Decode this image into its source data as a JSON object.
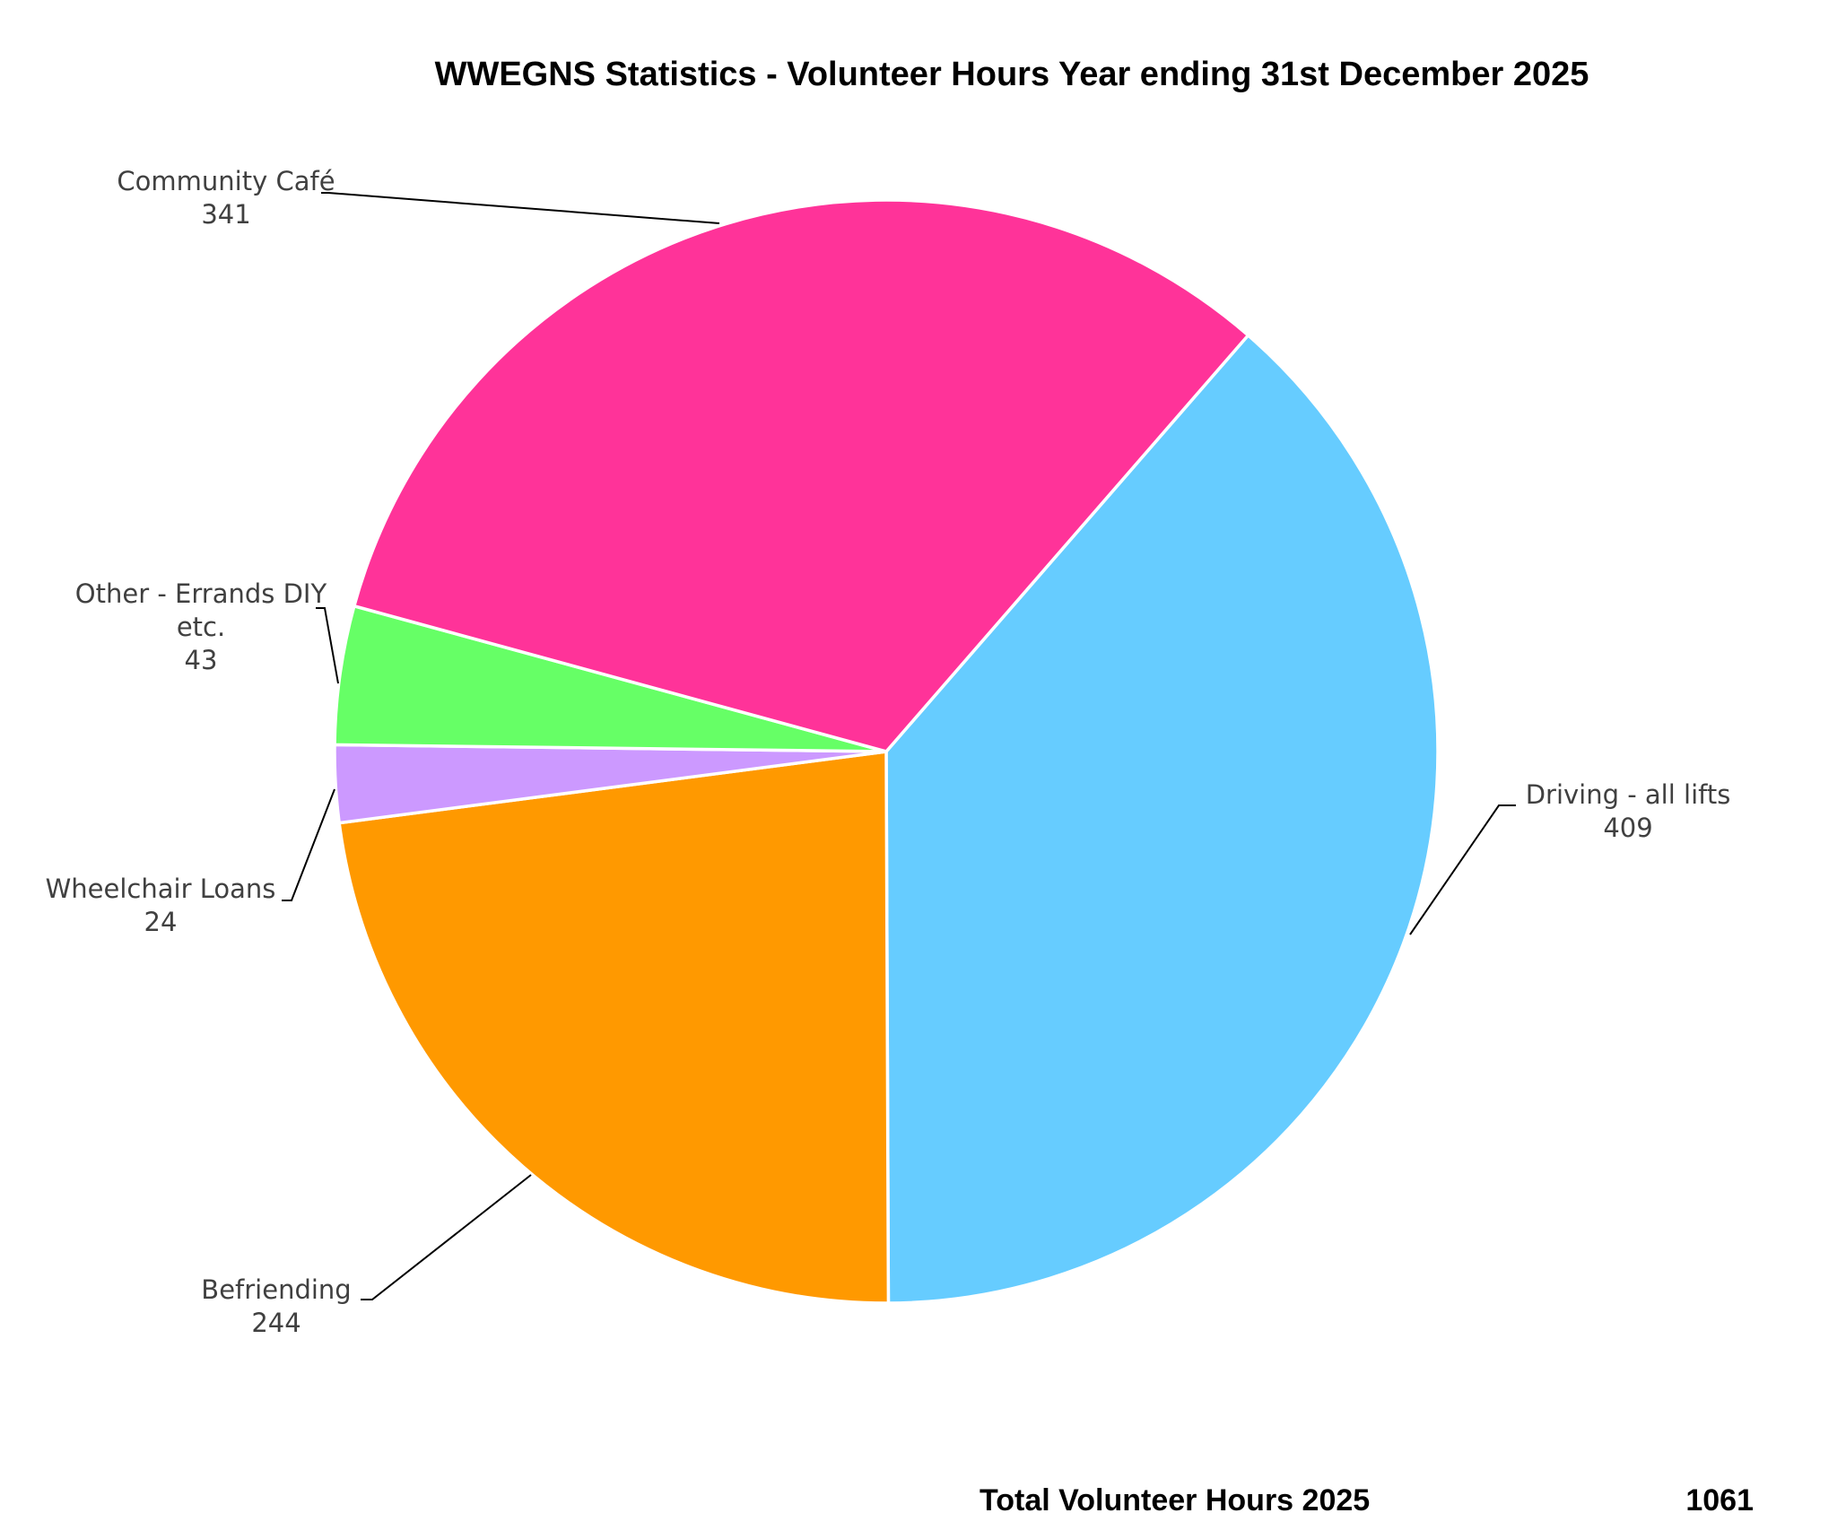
{
  "chart_data": {
    "type": "pie",
    "title": "WWEGNS Statistics - Volunteer Hours Year ending 31st December 2025",
    "slices": [
      {
        "label": "Driving - all lifts",
        "value": 409,
        "color": "#66CCFF"
      },
      {
        "label": "Befriending",
        "value": 244,
        "color": "#FF9900"
      },
      {
        "label": "Wheelchair Loans",
        "value": 24,
        "color": "#CC99FF"
      },
      {
        "label": "Other - Errands DIY etc.",
        "value": 43,
        "color": "#66FF66"
      },
      {
        "label": "Community Café",
        "value": 341,
        "color": "#FF3399"
      }
    ],
    "total": {
      "label": "Total Volunteer Hours 2025",
      "value": "1061"
    }
  }
}
